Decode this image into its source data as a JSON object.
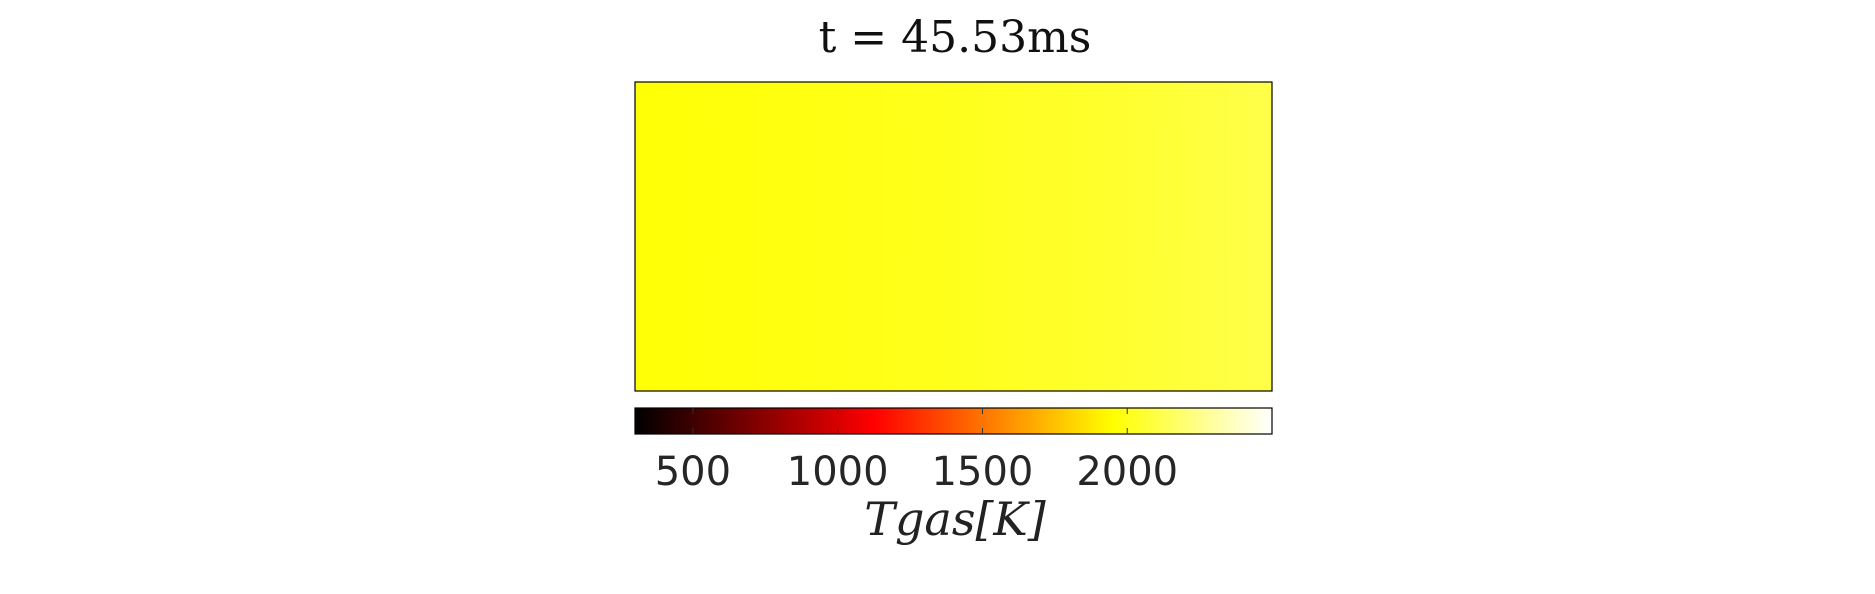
{
  "chart_data": {
    "type": "heatmap",
    "title": "t = 45.53ms",
    "colormap": "hot",
    "field": {
      "x": [
        0,
        0.1,
        0.2,
        0.3,
        0.4,
        0.5,
        0.6,
        0.7,
        0.8,
        0.9,
        1.0
      ],
      "values": [
        1960,
        1970,
        1980,
        1990,
        2000,
        2010,
        2025,
        2040,
        2060,
        2085,
        2110
      ]
    },
    "colorbar": {
      "range": [
        300,
        2500
      ],
      "ticks": [
        500,
        1000,
        1500,
        2000
      ],
      "tick_labels": [
        "500",
        "1000",
        "1500",
        "2000"
      ],
      "orientation": "horizontal",
      "position": "bottom"
    },
    "xlabel": "Tgas[K]"
  }
}
